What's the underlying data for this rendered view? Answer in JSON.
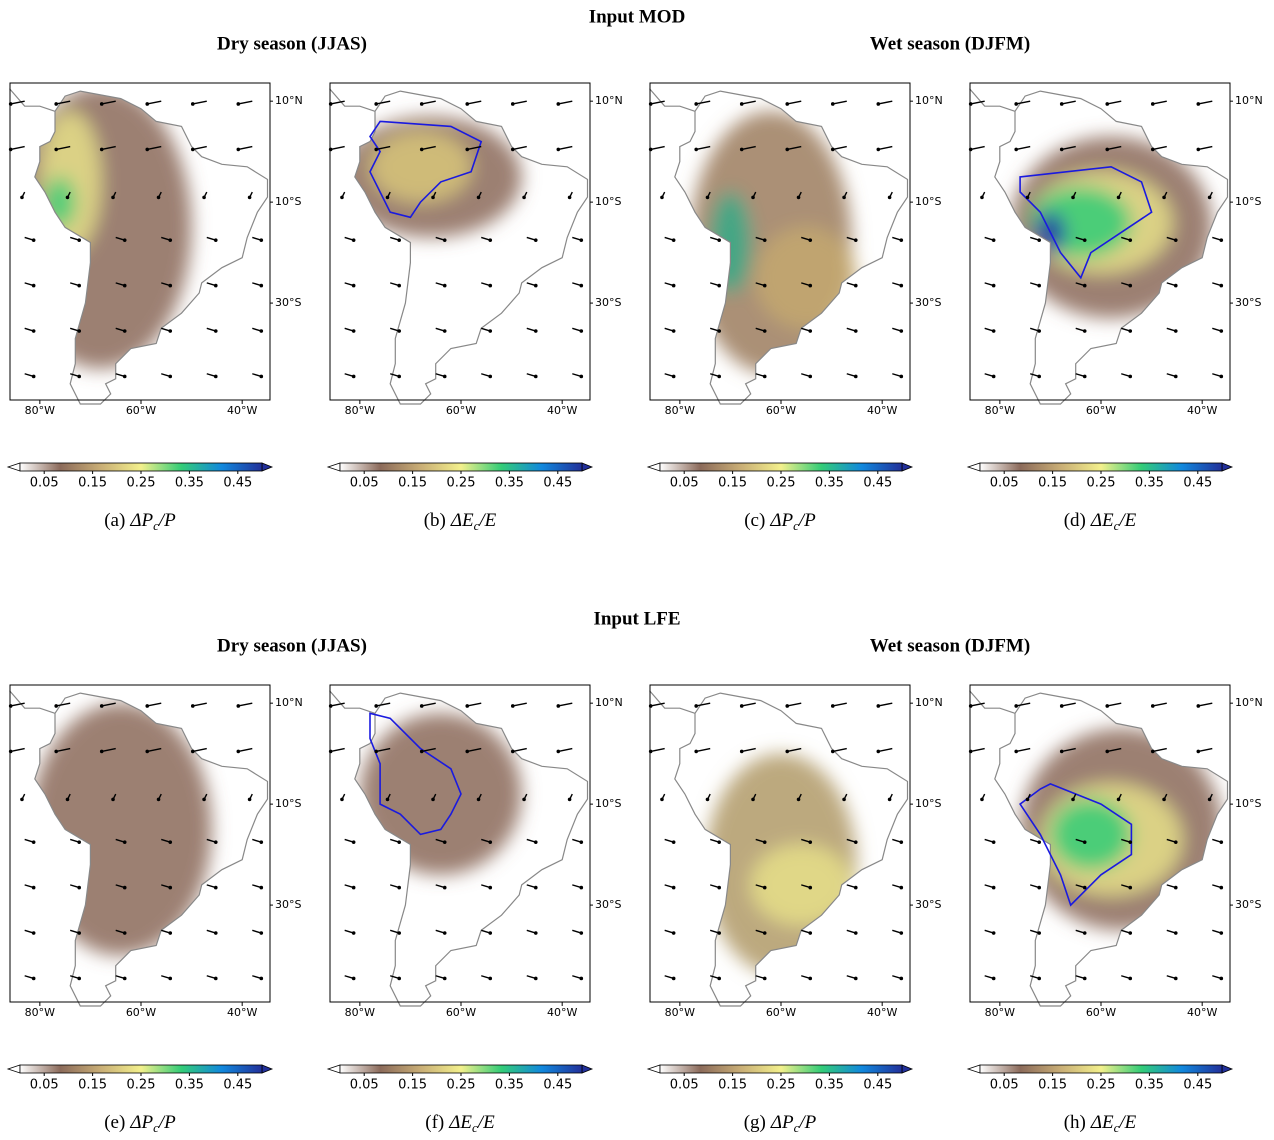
{
  "sections": [
    {
      "title": "Input MOD",
      "seasons": [
        "Dry season (JJAS)",
        "Wet season (DJFM)"
      ],
      "panels": [
        {
          "letter": "(a)",
          "symbol": "ΔP",
          "subscript": "c",
          "rest": "/P"
        },
        {
          "letter": "(b)",
          "symbol": "ΔE",
          "subscript": "c",
          "rest": "/E"
        },
        {
          "letter": "(c)",
          "symbol": "ΔP",
          "subscript": "c",
          "rest": "/P"
        },
        {
          "letter": "(d)",
          "symbol": "ΔE",
          "subscript": "c",
          "rest": "/E"
        }
      ]
    },
    {
      "title": "Input LFE",
      "seasons": [
        "Dry season (JJAS)",
        "Wet season (DJFM)"
      ],
      "panels": [
        {
          "letter": "(e)",
          "symbol": "ΔP",
          "subscript": "c",
          "rest": "/P"
        },
        {
          "letter": "(f)",
          "symbol": "ΔE",
          "subscript": "c",
          "rest": "/E"
        },
        {
          "letter": "(g)",
          "symbol": "ΔP",
          "subscript": "c",
          "rest": "/P"
        },
        {
          "letter": "(h)",
          "symbol": "ΔE",
          "subscript": "c",
          "rest": "/E"
        }
      ]
    }
  ],
  "map_axes": {
    "xlim": [
      -85.9,
      -34.5
    ],
    "ylim": [
      -49.2,
      13.6
    ],
    "xticks": [
      {
        "value": -80,
        "label": "80°W"
      },
      {
        "value": -60,
        "label": "60°W"
      },
      {
        "value": -40,
        "label": "40°W"
      }
    ],
    "yticks": [
      {
        "value": 10,
        "label": "10°N"
      },
      {
        "value": -10,
        "label": "10°S"
      },
      {
        "value": -30,
        "label": "30°S"
      }
    ]
  },
  "colorbar": {
    "lim": [
      0,
      0.5
    ],
    "ticks": [
      0.05,
      0.15,
      0.25,
      0.35,
      0.45
    ],
    "colors": [
      "#ffffff",
      "#8b6a5a",
      "#c9ae76",
      "#f3f08c",
      "#33cc77",
      "#1188dd",
      "#22309a"
    ]
  }
}
